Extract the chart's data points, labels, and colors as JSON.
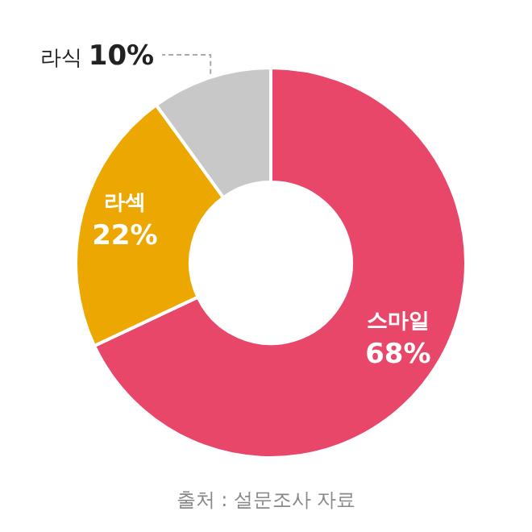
{
  "chart_data": {
    "type": "donut",
    "categories": [
      "스마일",
      "라섹",
      "라식"
    ],
    "values": [
      68,
      22,
      10
    ],
    "colors": [
      "#e8476a",
      "#eca800",
      "#c8c8c8"
    ],
    "value_labels": [
      "68%",
      "22%",
      "10%"
    ],
    "annotations": [
      "출처 : 설문조사 자료"
    ]
  }
}
